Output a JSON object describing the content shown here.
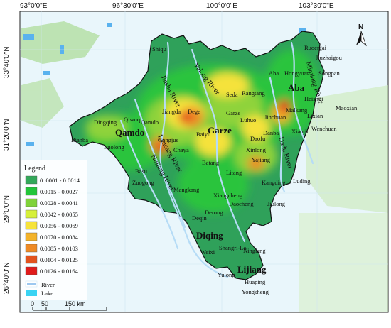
{
  "axes": {
    "top_ticks": [
      "93°0'0\"E",
      "96°30'0\"E",
      "100°0'0\"E",
      "103°30'0\"E"
    ],
    "left_ticks": [
      "33°40'0\"N",
      "31°20'0\"N",
      "29°0'0\"N",
      "26°40'0\"N"
    ]
  },
  "north_arrow": {
    "label": "N"
  },
  "regions": [
    {
      "name": "Qamdo"
    },
    {
      "name": "Garze"
    },
    {
      "name": "Aba"
    },
    {
      "name": "Diqing"
    },
    {
      "name": "Lijiang"
    }
  ],
  "places": [
    {
      "name": "Shiqu"
    },
    {
      "name": "Seda"
    },
    {
      "name": "Aba"
    },
    {
      "name": "Hongyuan"
    },
    {
      "name": "Songpan"
    },
    {
      "name": "Ruoergai"
    },
    {
      "name": "Jiuzhaigou"
    },
    {
      "name": "Heishui"
    },
    {
      "name": "Maoxian"
    },
    {
      "name": "Rangtang"
    },
    {
      "name": "Jinchuan"
    },
    {
      "name": "Malkang"
    },
    {
      "name": "Lixian"
    },
    {
      "name": "Wenchuan"
    },
    {
      "name": "Xiaojin"
    },
    {
      "name": "Danba"
    },
    {
      "name": "Daofu"
    },
    {
      "name": "Luhuo"
    },
    {
      "name": "Garze"
    },
    {
      "name": "Dege"
    },
    {
      "name": "Jiangda"
    },
    {
      "name": "Baiyu"
    },
    {
      "name": "Xinlong"
    },
    {
      "name": "Yajiang"
    },
    {
      "name": "Litang"
    },
    {
      "name": "Batang"
    },
    {
      "name": "Kangding"
    },
    {
      "name": "Luding"
    },
    {
      "name": "Jiulong"
    },
    {
      "name": "Daocheng"
    },
    {
      "name": "Xiangcheng"
    },
    {
      "name": "Derong"
    },
    {
      "name": "Deqin"
    },
    {
      "name": "Mangkang"
    },
    {
      "name": "Gongjue"
    },
    {
      "name": "Chaya"
    },
    {
      "name": "Basu"
    },
    {
      "name": "Zuogong"
    },
    {
      "name": "Luolong"
    },
    {
      "name": "Bianba"
    },
    {
      "name": "Dingqing"
    },
    {
      "name": "Qamdo"
    },
    {
      "name": "Qiwuqi"
    },
    {
      "name": "Shangri-La"
    },
    {
      "name": "Weixi"
    },
    {
      "name": "Ninglang"
    },
    {
      "name": "Yulong"
    },
    {
      "name": "Huaping"
    },
    {
      "name": "Yongsheng"
    }
  ],
  "rivers": [
    {
      "name": "Jinsha River"
    },
    {
      "name": "Yalong River"
    },
    {
      "name": "Minjiang River"
    },
    {
      "name": "Dadu River"
    },
    {
      "name": "Lancang River"
    },
    {
      "name": "Nujiang River"
    }
  ],
  "legend": {
    "title": "Legend",
    "items": [
      {
        "label": "0. 0001 - 0.0014",
        "color": "#33a85a"
      },
      {
        "label": "0.0015 - 0.0027",
        "color": "#22c53a"
      },
      {
        "label": "0.0028 - 0.0041",
        "color": "#7fd23a"
      },
      {
        "label": "0.0042 - 0.0055",
        "color": "#d6f03a"
      },
      {
        "label": "0.0056 - 0.0069",
        "color": "#f6e33a"
      },
      {
        "label": "0.0070 - 0.0084",
        "color": "#f3b32a"
      },
      {
        "label": "0.0085 - 0.0103",
        "color": "#ee8a25"
      },
      {
        "label": "0.0104 - 0.0125",
        "color": "#e2531e"
      },
      {
        "label": "0.0126 - 0.0164",
        "color": "#e01b1b"
      }
    ],
    "river_label": "River",
    "lake_label": "Lake",
    "river_color": "#9cc8f0",
    "lake_color": "#39d3f3"
  },
  "scale_bar": {
    "labels": [
      "0",
      "50",
      "150 km"
    ]
  },
  "colors": {
    "background_land": "#e9f6fb",
    "background_water": "#7ec3f0",
    "study_area_outline": "#111111"
  }
}
